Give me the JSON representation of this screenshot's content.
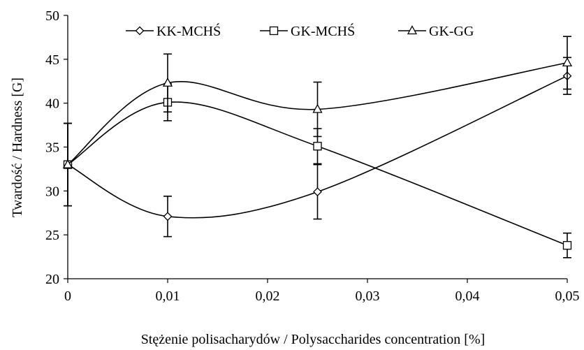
{
  "chart_data": {
    "type": "line",
    "title": "",
    "xlabel": "Stężenie polisacharydów / Polysaccharides concentration [%]",
    "ylabel": "Twardość / Hardness [G]",
    "x": [
      0,
      0.01,
      0.025,
      0.05
    ],
    "x_ticks": [
      "0",
      "0,01",
      "0,02",
      "0,03",
      "0,04",
      "0,05"
    ],
    "y_ticks": [
      "20",
      "25",
      "30",
      "35",
      "40",
      "45",
      "50"
    ],
    "xlim": [
      0,
      0.05
    ],
    "ylim": [
      20,
      50
    ],
    "grid": false,
    "legend_position": "top",
    "smooth": true,
    "series": [
      {
        "name": "KK-MCHŚ",
        "marker": "diamond",
        "values": [
          33.0,
          27.1,
          29.9,
          43.1
        ],
        "errors": [
          4.7,
          2.3,
          3.1,
          2.1
        ]
      },
      {
        "name": "GK-MCHŚ",
        "marker": "square",
        "values": [
          33.0,
          40.1,
          35.1,
          23.8
        ],
        "errors": [
          4.7,
          2.1,
          2.0,
          1.4
        ]
      },
      {
        "name": "GK-GG",
        "marker": "triangle",
        "values": [
          33.0,
          42.3,
          39.3,
          44.6
        ],
        "errors": [
          4.7,
          3.3,
          3.1,
          3.0
        ]
      }
    ]
  }
}
